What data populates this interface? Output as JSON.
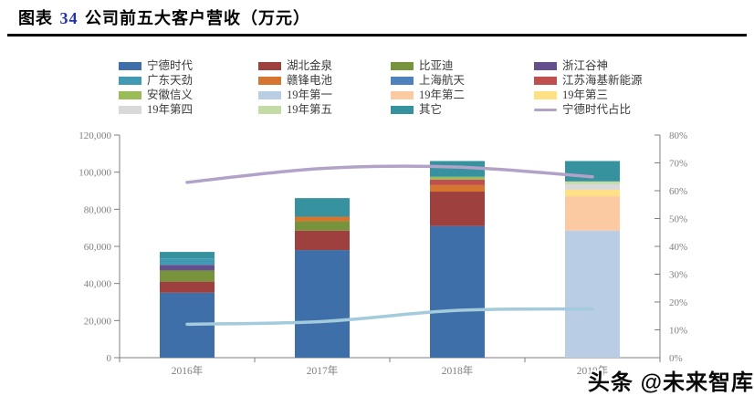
{
  "title": {
    "prefix": "图表",
    "number": "34",
    "text": "公司前五大客户营收（万元）"
  },
  "watermark": {
    "text": "头条 @未来智库"
  },
  "accent_colors": {
    "title_number": "#2433A8",
    "axis_text": "#7F7F7F",
    "axis_line": "#7F7F7F"
  },
  "legend": {
    "columns": [
      [
        {
          "label": "宁德时代",
          "color": "#3E6FA8",
          "type": "box"
        },
        {
          "label": "广东天劲",
          "color": "#4199B2",
          "type": "box"
        },
        {
          "label": "安徽信义",
          "color": "#9BBB59",
          "type": "box"
        },
        {
          "label": "19年第四",
          "color": "#D9D9D9",
          "type": "box"
        }
      ],
      [
        {
          "label": "湖北金泉",
          "color": "#9E413E",
          "type": "box"
        },
        {
          "label": "赣锋电池",
          "color": "#D4762F",
          "type": "box"
        },
        {
          "label": "19年第一",
          "color": "#B9CDE5",
          "type": "box"
        },
        {
          "label": "19年第五",
          "color": "#C5DBA5",
          "type": "box"
        }
      ],
      [
        {
          "label": "比亚迪",
          "color": "#77933C",
          "type": "box"
        },
        {
          "label": "上海航天",
          "color": "#4F81BD",
          "type": "box"
        },
        {
          "label": "19年第二",
          "color": "#FBCAA2",
          "type": "box"
        },
        {
          "label": "其它",
          "color": "#35929E",
          "type": "box"
        }
      ],
      [
        {
          "label": "浙江谷神",
          "color": "#64508C",
          "type": "box"
        },
        {
          "label": "江苏海基新能源",
          "color": "#C0504D",
          "type": "box"
        },
        {
          "label": "19年第三",
          "color": "#FFE083",
          "type": "box"
        },
        {
          "label": "宁德时代占比",
          "color": "#B3A2C7",
          "type": "line"
        }
      ]
    ]
  },
  "chart_data": {
    "type": "bar",
    "subtype": "stacked-bars-with-smoothed-line-overlay",
    "title": "公司前五大客户营收（万元）",
    "categories": [
      "2016年",
      "2017年",
      "2018年",
      "2019年"
    ],
    "bars": [
      {
        "category": "2016年",
        "total": 57000,
        "segments": [
          {
            "name": "宁德时代",
            "value": 35000
          },
          {
            "name": "湖北金泉",
            "value": 6000
          },
          {
            "name": "比亚迪",
            "value": 6000
          },
          {
            "name": "浙江谷神",
            "value": 3000
          },
          {
            "name": "广东天劲",
            "value": 3500
          },
          {
            "name": "其它",
            "value": 3500
          }
        ]
      },
      {
        "category": "2017年",
        "total": 86000,
        "segments": [
          {
            "name": "宁德时代",
            "value": 58000
          },
          {
            "name": "湖北金泉",
            "value": 10500
          },
          {
            "name": "比亚迪",
            "value": 5000
          },
          {
            "name": "赣锋电池",
            "value": 2500
          },
          {
            "name": "其它",
            "value": 10000
          }
        ]
      },
      {
        "category": "2018年",
        "total": 106000,
        "segments": [
          {
            "name": "宁德时代",
            "value": 71000
          },
          {
            "name": "湖北金泉",
            "value": 18500
          },
          {
            "name": "赣锋电池",
            "value": 3500
          },
          {
            "name": "江苏海基新能源",
            "value": 3000
          },
          {
            "name": "安徽信义",
            "value": 1500
          },
          {
            "name": "其它",
            "value": 8500
          }
        ]
      },
      {
        "category": "2019年",
        "total": 106000,
        "segments": [
          {
            "name": "19年第一",
            "value": 68500
          },
          {
            "name": "19年第二",
            "value": 18500
          },
          {
            "name": "19年第三",
            "value": 3500
          },
          {
            "name": "19年第四",
            "value": 3000
          },
          {
            "name": "19年第五",
            "value": 1500
          },
          {
            "name": "其它",
            "value": 11000
          }
        ]
      }
    ],
    "series_colors": {
      "宁德时代": "#3E6FA8",
      "湖北金泉": "#9E413E",
      "比亚迪": "#77933C",
      "浙江谷神": "#64508C",
      "广东天劲": "#4199B2",
      "赣锋电池": "#D4762F",
      "上海航天": "#4F81BD",
      "江苏海基新能源": "#C0504D",
      "安徽信义": "#9BBB59",
      "19年第一": "#B9CDE5",
      "19年第二": "#FBCAA2",
      "19年第三": "#FFE083",
      "19年第四": "#D9D9D9",
      "19年第五": "#C5DBA5",
      "其它": "#35929E"
    },
    "lines": [
      {
        "name": "宁德时代占比",
        "color": "#B3A2C7",
        "axis": "right",
        "values_pct": [
          63,
          68,
          68.5,
          65
        ]
      },
      {
        "name": "unlabeled-light-blue-line",
        "color": "#A3CBDB",
        "axis": "right",
        "values_pct": [
          12,
          13,
          17,
          17.5
        ]
      }
    ],
    "left_axis": {
      "min": 0,
      "max": 120000,
      "step": 20000,
      "tick_labels": [
        "0",
        "20,000",
        "40,000",
        "60,000",
        "80,000",
        "100,000",
        "120,000"
      ]
    },
    "right_axis": {
      "min": 0,
      "max": 80,
      "step": 10,
      "tick_labels": [
        "0%",
        "10%",
        "20%",
        "30%",
        "40%",
        "50%",
        "60%",
        "70%",
        "80%"
      ]
    },
    "grid": false,
    "legend_position": "top"
  }
}
